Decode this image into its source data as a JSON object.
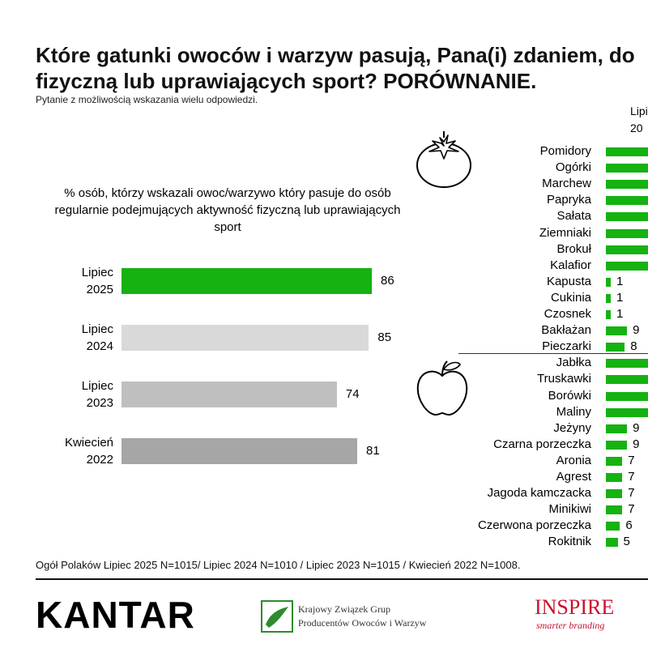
{
  "title_line1": "Które gatunki owoców i warzyw pasują, Pana(i) zdaniem, do",
  "title_line2": "fizyczną lub uprawiających sport? PORÓWNANIE.",
  "subtitle": "Pytanie z możliwością wskazania wielu odpowiedzi.",
  "right_header": "Lipi\n20",
  "left_note": "% osób, którzy wskazali owoc/warzywo który pasuje do osób regularnie podejmujących aktywność fizyczną lub uprawiających sport",
  "footnote": "Ogół Polaków Lipiec 2025 N=1015/ Lipiec 2024 N=1010 / Lipiec 2023 N=1015 / Kwiecień 2022 N=1008.",
  "logos": {
    "kantar": "KANTAR",
    "kzgppow_line1": "Krajowy Związek Grup",
    "kzgppow_line2": "Producentów Owoców i Warzyw",
    "inspire": "INSPIRE",
    "inspire_tagline": "smarter branding"
  },
  "icons": {
    "tomato": "tomato-icon",
    "apple": "apple-icon"
  },
  "colors": {
    "green": "#15b212",
    "gray_2024": "#d9d9d9",
    "gray_2023": "#bfbfbf",
    "gray_2022": "#a6a6a6"
  },
  "chart_data": [
    {
      "type": "bar",
      "orientation": "horizontal",
      "categories": [
        "Lipiec\n2025",
        "Lipiec\n2024",
        "Lipiec\n2023",
        "Kwiecień\n2022"
      ],
      "values": [
        86,
        85,
        74,
        81
      ],
      "colors": [
        "#15b212",
        "#d9d9d9",
        "#bfbfbf",
        "#a6a6a6"
      ],
      "xlim": [
        0,
        100
      ]
    },
    {
      "type": "bar",
      "orientation": "horizontal",
      "groups": [
        {
          "icon": "tomato-icon",
          "items": [
            {
              "label": "Pomidory",
              "value": null
            },
            {
              "label": "Ogórki",
              "value": null
            },
            {
              "label": "Marchew",
              "value": null
            },
            {
              "label": "Papryka",
              "value": null
            },
            {
              "label": "Sałata",
              "value": null
            },
            {
              "label": "Ziemniaki",
              "value": null
            },
            {
              "label": "Brokuł",
              "value": null
            },
            {
              "label": "Kalafior",
              "value": null
            },
            {
              "label": "Kapusta",
              "value": 1,
              "value_text": "1"
            },
            {
              "label": "Cukinia",
              "value": 1,
              "value_text": "1"
            },
            {
              "label": "Czosnek",
              "value": 1,
              "value_text": "1"
            },
            {
              "label": "Bakłażan",
              "value": 9,
              "value_text": "9"
            },
            {
              "label": "Pieczarki",
              "value": 8,
              "value_text": "8"
            }
          ]
        },
        {
          "icon": "apple-icon",
          "items": [
            {
              "label": "Jabłka",
              "value": null
            },
            {
              "label": "Truskawki",
              "value": null
            },
            {
              "label": "Borówki",
              "value": null
            },
            {
              "label": "Maliny",
              "value": null
            },
            {
              "label": "Jeżyny",
              "value": 9,
              "value_text": "9"
            },
            {
              "label": "Czarna porzeczka",
              "value": 9,
              "value_text": "9"
            },
            {
              "label": "Aronia",
              "value": 7,
              "value_text": "7"
            },
            {
              "label": "Agrest",
              "value": 7,
              "value_text": "7"
            },
            {
              "label": "Jagoda kamczacka",
              "value": 7,
              "value_text": "7"
            },
            {
              "label": "Minikiwi",
              "value": 7,
              "value_text": "7"
            },
            {
              "label": "Czerwona porzeczka",
              "value": 6,
              "value_text": "6"
            },
            {
              "label": "Rokitnik",
              "value": 5,
              "value_text": "5"
            }
          ]
        }
      ]
    }
  ]
}
